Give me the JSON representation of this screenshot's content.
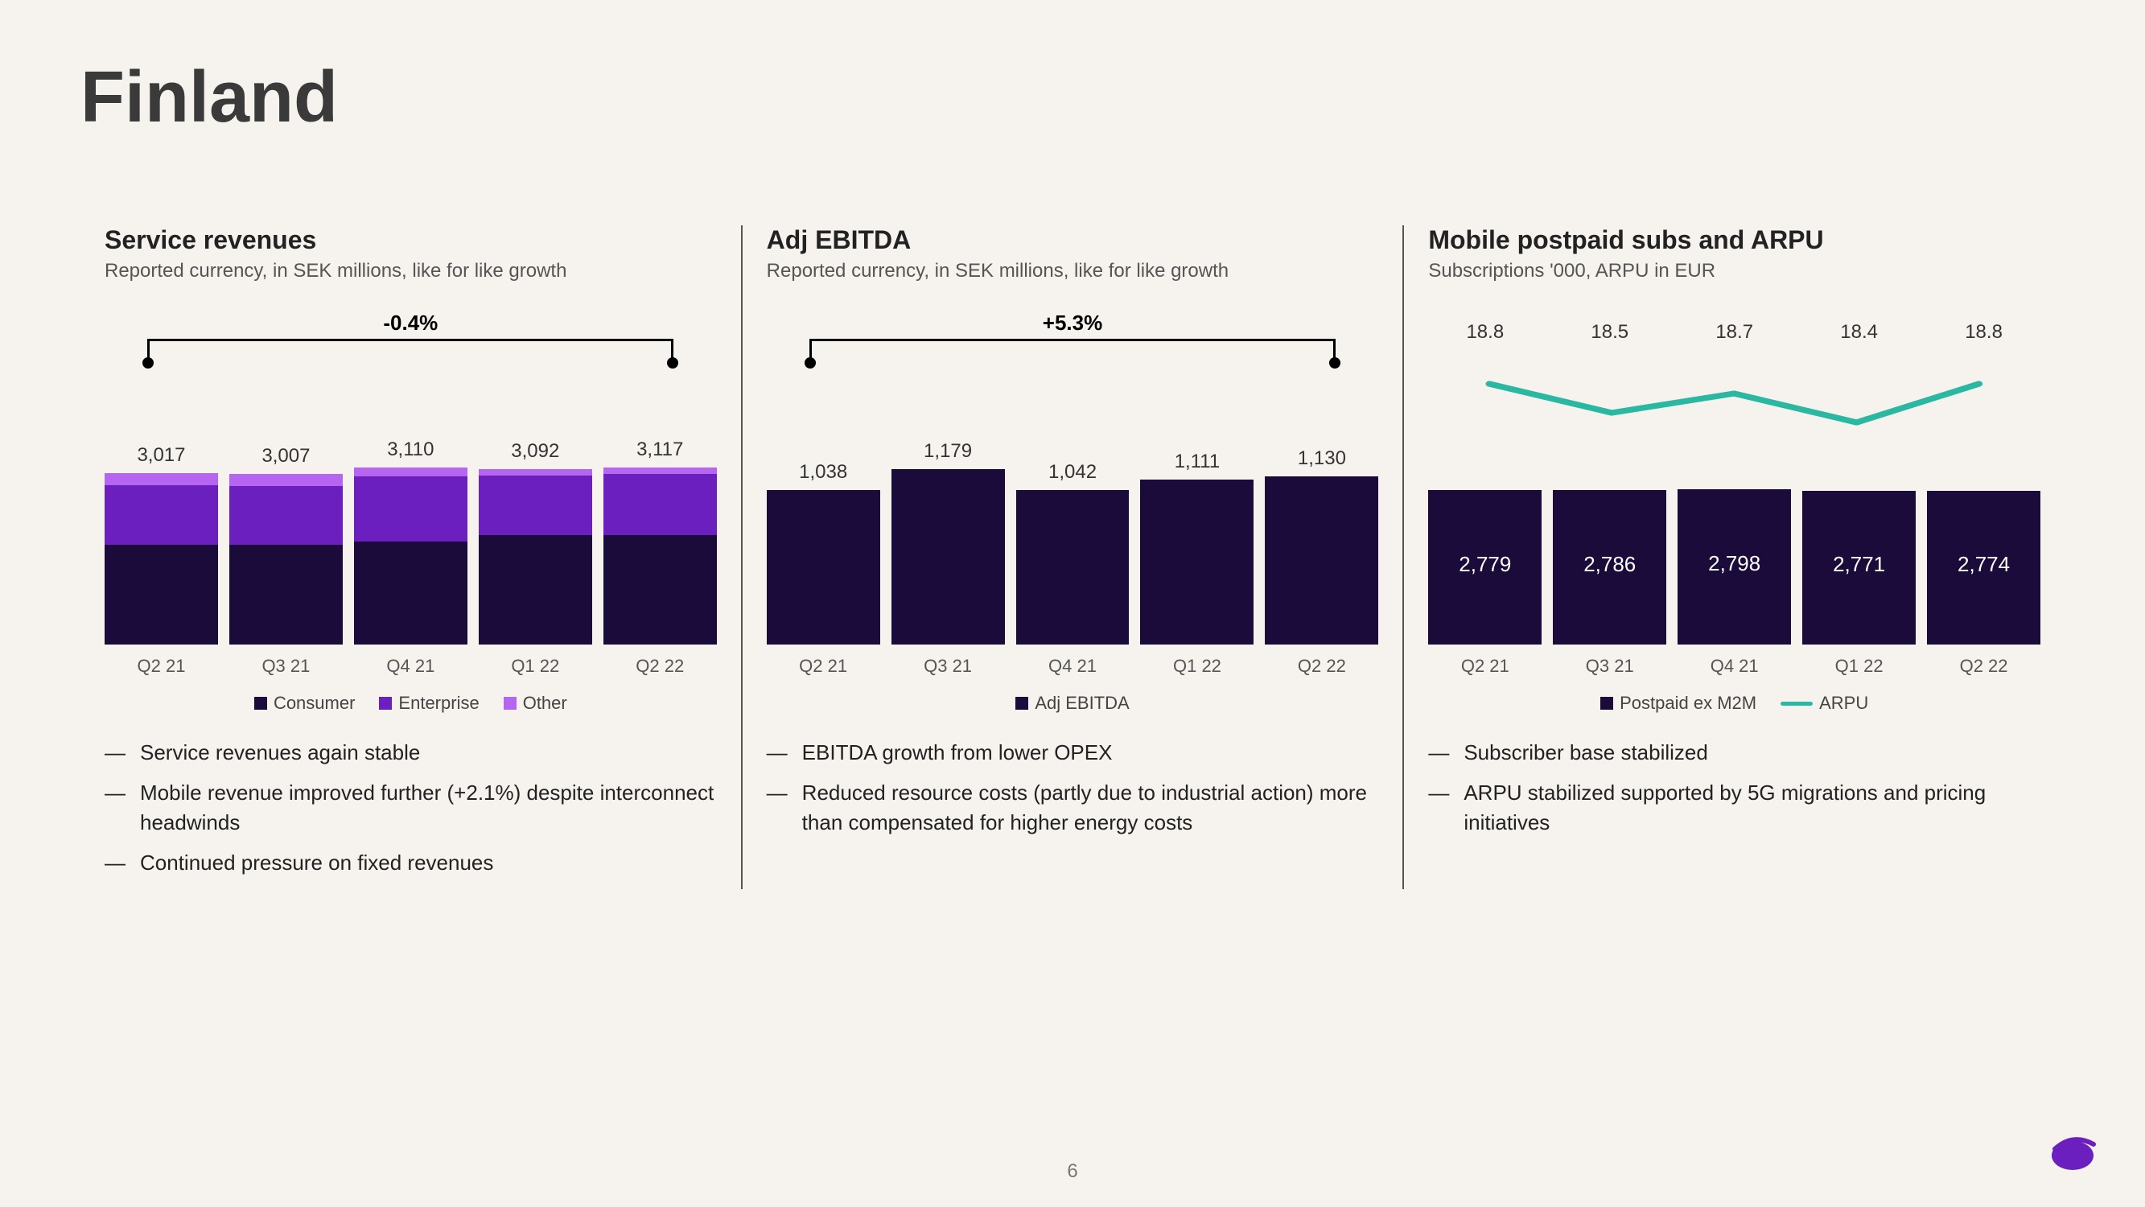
{
  "page_title": "Finland",
  "page_number": "6",
  "chart1": {
    "title": "Service revenues",
    "subtitle": "Reported currency, in SEK millions, like for like growth",
    "type": "stacked-bar",
    "categories": [
      "Q2 21",
      "Q3 21",
      "Q4 21",
      "Q1 22",
      "Q2 22"
    ],
    "totals": [
      "3,017",
      "3,007",
      "3,110",
      "3,092",
      "3,117"
    ],
    "series": [
      {
        "name": "Consumer",
        "color": "#1a0b3b",
        "values": [
          1750,
          1750,
          1820,
          1920,
          1930
        ]
      },
      {
        "name": "Enterprise",
        "color": "#6b1fbf",
        "values": [
          1050,
          1040,
          1140,
          1060,
          1070
        ]
      },
      {
        "name": "Other",
        "color": "#b665f0",
        "values": [
          217,
          217,
          150,
          112,
          117
        ]
      }
    ],
    "y_max": 3400,
    "bracket_label": "-0.4%",
    "legend": [
      "Consumer",
      "Enterprise",
      "Other"
    ],
    "bullets": [
      "Service revenues again stable",
      "Mobile revenue improved further (+2.1%) despite interconnect headwinds",
      "Continued pressure on fixed revenues"
    ]
  },
  "chart2": {
    "title": "Adj EBITDA",
    "subtitle": "Reported currency, in SEK millions, like for like growth",
    "type": "bar",
    "categories": [
      "Q2 21",
      "Q3 21",
      "Q4 21",
      "Q1 22",
      "Q2 22"
    ],
    "values": [
      1038,
      1179,
      1042,
      1111,
      1130
    ],
    "value_labels": [
      "1,038",
      "1,179",
      "1,042",
      "1,111",
      "1,130"
    ],
    "bar_color": "#1a0b3b",
    "y_max": 1300,
    "bracket_label": "+5.3%",
    "legend_label": "Adj EBITDA",
    "bullets": [
      "EBITDA growth from lower OPEX",
      "Reduced resource costs (partly due to industrial action) more than compensated for higher energy costs"
    ]
  },
  "chart3": {
    "title": "Mobile postpaid subs and ARPU",
    "subtitle": "Subscriptions '000, ARPU in EUR",
    "type": "bar-line",
    "categories": [
      "Q2 21",
      "Q3 21",
      "Q4 21",
      "Q1 22",
      "Q2 22"
    ],
    "bar_values": [
      2779,
      2786,
      2798,
      2771,
      2774
    ],
    "bar_labels": [
      "2,779",
      "2,786",
      "2,798",
      "2,771",
      "2,774"
    ],
    "bar_color": "#1a0b3b",
    "bar_y_max": 2900,
    "line_values": [
      18.8,
      18.5,
      18.7,
      18.4,
      18.8
    ],
    "line_labels": [
      "18.8",
      "18.5",
      "18.7",
      "18.4",
      "18.8"
    ],
    "line_color": "#2bb8a3",
    "legend_bar": "Postpaid ex M2M",
    "legend_line": "ARPU",
    "bullets": [
      "Subscriber base stabilized",
      "ARPU stabilized supported by 5G migrations and pricing initiatives"
    ]
  },
  "logo_color": "#6b1fbf"
}
